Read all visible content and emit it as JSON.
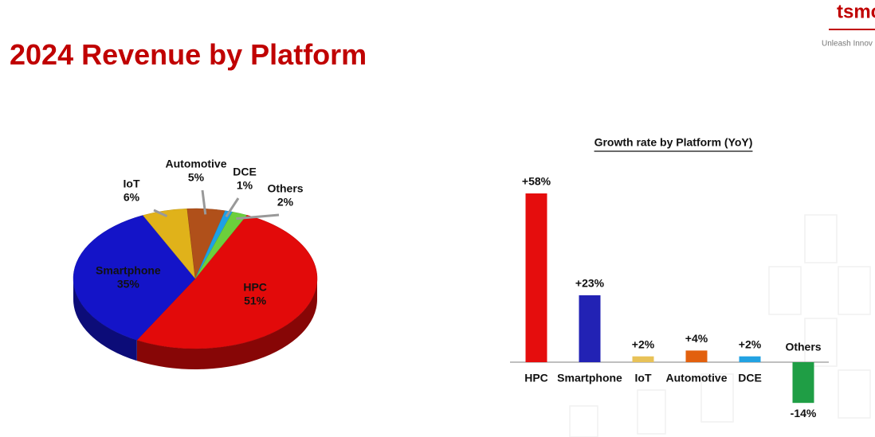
{
  "header": {
    "title": "2024 Revenue by Platform",
    "logo": "tsmc",
    "tagline": "Unleash Innov"
  },
  "chart_data": [
    {
      "type": "pie",
      "categories": [
        "HPC",
        "Smartphone",
        "IoT",
        "Automotive",
        "DCE",
        "Others"
      ],
      "values": [
        51,
        35,
        6,
        5,
        1,
        2
      ],
      "value_labels": [
        "51%",
        "35%",
        "6%",
        "5%",
        "1%",
        "2%"
      ],
      "colors": [
        "#e20a0a",
        "#1414c8",
        "#e0b21a",
        "#b0501a",
        "#1ea0e6",
        "#6ccf3c"
      ]
    },
    {
      "type": "bar",
      "title": "Growth rate by Platform (YoY)",
      "categories": [
        "HPC",
        "Smartphone",
        "IoT",
        "Automotive",
        "DCE",
        "Others"
      ],
      "values": [
        58,
        23,
        2,
        4,
        2,
        -14
      ],
      "value_labels": [
        "+58%",
        "+23%",
        "+2%",
        "+4%",
        "+2%",
        "-14%"
      ],
      "colors": [
        "#e50d0d",
        "#2222b4",
        "#e8c258",
        "#e2600e",
        "#22a2e2",
        "#1f9e45"
      ]
    }
  ]
}
